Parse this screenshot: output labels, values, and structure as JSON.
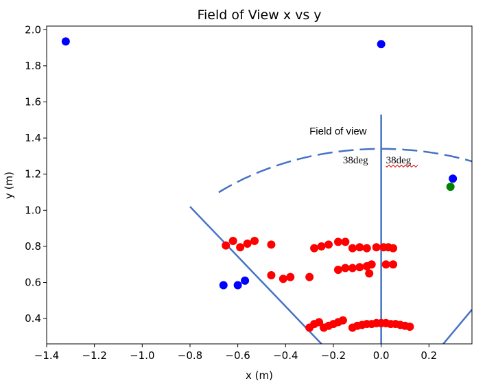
{
  "chart_data": {
    "type": "scatter",
    "title": "Field of View x vs y",
    "xlabel": "x (m)",
    "ylabel": "y (m)",
    "xlim": [
      -1.4,
      0.38
    ],
    "ylim": [
      0.26,
      2.02
    ],
    "xticks": [
      -1.4,
      -1.2,
      -1.0,
      -0.8,
      -0.6,
      -0.4,
      -0.2,
      0.0,
      0.2
    ],
    "xtick_labels": [
      "−1.4",
      "−1.2",
      "−1.0",
      "−0.8",
      "−0.6",
      "−0.4",
      "−0.2",
      "0.0",
      "0.2"
    ],
    "yticks": [
      0.4,
      0.6,
      0.8,
      1.0,
      1.2,
      1.4,
      1.6,
      1.8,
      2.0
    ],
    "ytick_labels": [
      "0.4",
      "0.6",
      "0.8",
      "1.0",
      "1.2",
      "1.4",
      "1.6",
      "1.8",
      "2.0"
    ],
    "grid": false,
    "series": [
      {
        "color": "#0000ff",
        "points": [
          [
            -1.32,
            1.935
          ],
          [
            0.0,
            1.92
          ],
          [
            0.3,
            1.175
          ],
          [
            -0.66,
            0.585
          ],
          [
            -0.6,
            0.585
          ],
          [
            -0.57,
            0.61
          ]
        ]
      },
      {
        "color": "#008000",
        "points": [
          [
            0.29,
            1.13
          ]
        ]
      },
      {
        "color": "#ff0000",
        "points": [
          [
            -0.65,
            0.805
          ],
          [
            -0.62,
            0.83
          ],
          [
            -0.59,
            0.795
          ],
          [
            -0.56,
            0.815
          ],
          [
            -0.53,
            0.83
          ],
          [
            -0.46,
            0.81
          ],
          [
            -0.28,
            0.79
          ],
          [
            -0.25,
            0.8
          ],
          [
            -0.22,
            0.81
          ],
          [
            -0.18,
            0.825
          ],
          [
            -0.15,
            0.825
          ],
          [
            -0.12,
            0.79
          ],
          [
            -0.09,
            0.795
          ],
          [
            -0.06,
            0.79
          ],
          [
            -0.02,
            0.795
          ],
          [
            0.01,
            0.795
          ],
          [
            0.03,
            0.795
          ],
          [
            0.05,
            0.79
          ],
          [
            -0.46,
            0.64
          ],
          [
            -0.41,
            0.62
          ],
          [
            -0.38,
            0.63
          ],
          [
            -0.3,
            0.63
          ],
          [
            -0.18,
            0.67
          ],
          [
            -0.15,
            0.68
          ],
          [
            -0.12,
            0.68
          ],
          [
            -0.09,
            0.685
          ],
          [
            -0.06,
            0.69
          ],
          [
            -0.04,
            0.7
          ],
          [
            -0.05,
            0.65
          ],
          [
            0.02,
            0.7
          ],
          [
            0.05,
            0.7
          ],
          [
            -0.3,
            0.35
          ],
          [
            -0.28,
            0.37
          ],
          [
            -0.26,
            0.38
          ],
          [
            -0.24,
            0.35
          ],
          [
            -0.22,
            0.36
          ],
          [
            -0.2,
            0.37
          ],
          [
            -0.18,
            0.38
          ],
          [
            -0.16,
            0.39
          ],
          [
            -0.12,
            0.35
          ],
          [
            -0.1,
            0.36
          ],
          [
            -0.08,
            0.365
          ],
          [
            -0.06,
            0.37
          ],
          [
            -0.04,
            0.37
          ],
          [
            -0.02,
            0.375
          ],
          [
            0.0,
            0.375
          ],
          [
            0.02,
            0.375
          ],
          [
            0.04,
            0.37
          ],
          [
            0.06,
            0.37
          ],
          [
            0.08,
            0.365
          ],
          [
            0.1,
            0.36
          ],
          [
            0.12,
            0.355
          ]
        ]
      }
    ],
    "fov_lines": {
      "color": "#4472c4",
      "center_line": [
        [
          0.0,
          0.26
        ],
        [
          0.0,
          1.53
        ]
      ],
      "left_line": [
        [
          -0.8,
          1.02
        ],
        [
          -0.25,
          0.26
        ]
      ],
      "right_line": [
        [
          0.26,
          0.26
        ],
        [
          0.38,
          0.45
        ]
      ],
      "arc": {
        "center": [
          0.0,
          0.26
        ],
        "radius": 1.08,
        "start_x": -0.68,
        "end_x": 0.38,
        "dashed": true
      }
    },
    "annotations": [
      {
        "text": "Field of view",
        "x": -0.3,
        "y": 1.42
      },
      {
        "text": "38deg",
        "x": -0.16,
        "y": 1.26
      },
      {
        "text": "38deg",
        "x": 0.02,
        "y": 1.26
      }
    ]
  }
}
